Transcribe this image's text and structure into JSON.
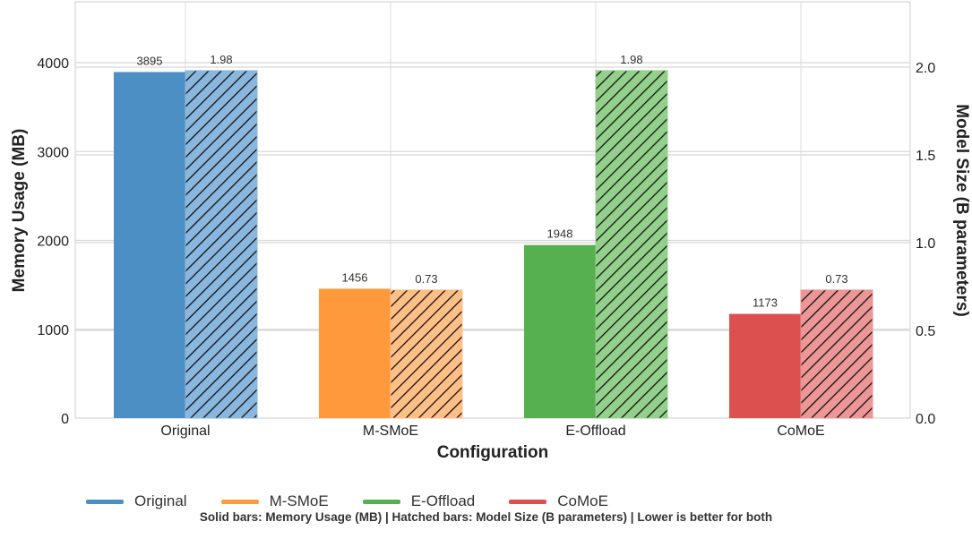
{
  "chart_data": {
    "type": "bar",
    "title": "",
    "xlabel": "Configuration",
    "ylabel_left": "Memory Usage (MB)",
    "ylabel_right": "Model Size (B parameters)",
    "categories": [
      "Original",
      "M-SMoE",
      "E-Offload",
      "CoMoE"
    ],
    "colors": [
      "#4c8fc4",
      "#ff9a3c",
      "#56b04f",
      "#dd5050"
    ],
    "hatch_colors": [
      "#8ab7de",
      "#ffbf86",
      "#93d08b",
      "#ec9696"
    ],
    "series": [
      {
        "name": "Memory Usage (MB)",
        "axis": "left",
        "style": "solid",
        "values": [
          3895,
          1456,
          1948,
          1173
        ],
        "labels": [
          "3895",
          "1456",
          "1948",
          "1173"
        ]
      },
      {
        "name": "Model Size (B parameters)",
        "axis": "right",
        "style": "hatched",
        "values": [
          1.98,
          0.73,
          1.98,
          0.73
        ],
        "labels": [
          "1.98",
          "0.73",
          "1.98",
          "0.73"
        ]
      }
    ],
    "ylim_left": [
      0,
      4700
    ],
    "ylim_right": [
      0,
      2.35
    ],
    "yticks_left": [
      "0",
      "1000",
      "2000",
      "3000",
      "4000"
    ],
    "yticks_right": [
      "0.0",
      "0.5",
      "1.0",
      "1.5",
      "2.0"
    ],
    "grid": true
  },
  "legend": {
    "placement": "bottom",
    "items": [
      {
        "label": "Original",
        "color": "#4c8fc4"
      },
      {
        "label": "M-SMoE",
        "color": "#ff9a3c"
      },
      {
        "label": "E-Offload",
        "color": "#56b04f"
      },
      {
        "label": "CoMoE",
        "color": "#dd5050"
      }
    ]
  },
  "footnote": "Solid bars: Memory Usage (MB) | Hatched bars: Model Size (B parameters) | Lower is better for both"
}
